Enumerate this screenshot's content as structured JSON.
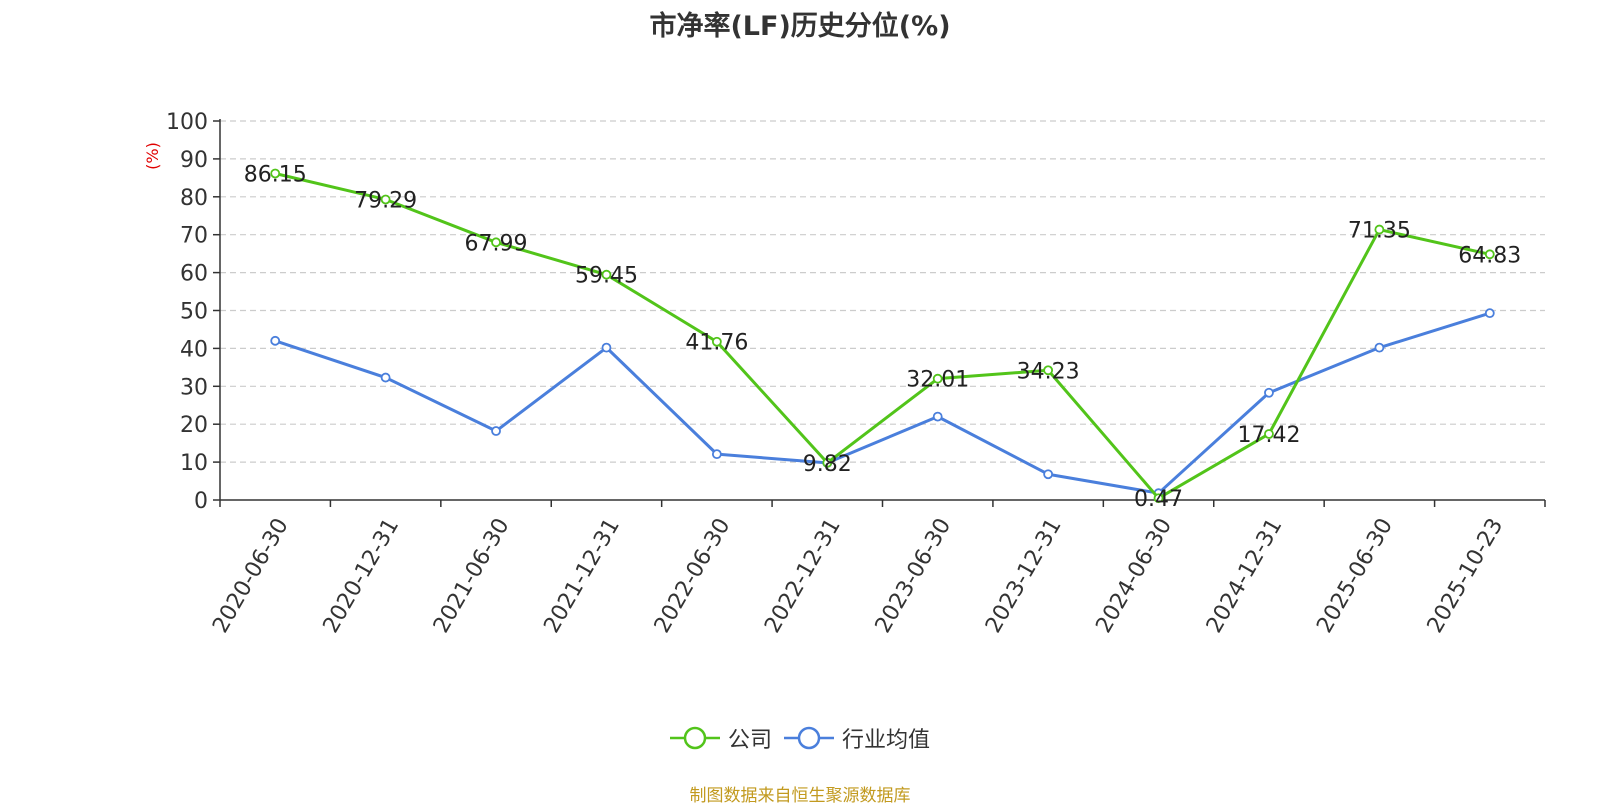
{
  "chart_data": {
    "type": "line",
    "title": "市净率(LF)历史分位(%)",
    "ylabel": "(%)",
    "xlabel": "",
    "ylim": [
      0,
      100
    ],
    "yticks": [
      0,
      10,
      20,
      30,
      40,
      50,
      60,
      70,
      80,
      90,
      100
    ],
    "grid": true,
    "legend_position": "bottom-center",
    "categories": [
      "2020-06-30",
      "2020-12-31",
      "2021-06-30",
      "2021-12-31",
      "2022-06-30",
      "2022-12-31",
      "2023-06-30",
      "2023-12-31",
      "2024-06-30",
      "2024-12-31",
      "2025-06-30",
      "2025-10-23"
    ],
    "series": [
      {
        "name": "公司",
        "color": "#52c41a",
        "show_labels": true,
        "values": [
          86.15,
          79.29,
          67.99,
          59.45,
          41.76,
          9.82,
          32.01,
          34.23,
          0.47,
          17.42,
          71.35,
          64.83
        ],
        "labels": [
          "86.15",
          "79.29",
          "67.99",
          "59.45",
          "41.76",
          "9.82",
          "32.01",
          "34.23",
          "0.47",
          "17.42",
          "71.35",
          "64.83"
        ]
      },
      {
        "name": "行业均值",
        "color": "#4a7fdc",
        "show_labels": false,
        "values": [
          42.0,
          32.3,
          18.2,
          40.2,
          12.1,
          9.8,
          22.0,
          6.8,
          1.8,
          28.3,
          40.2,
          49.3
        ]
      }
    ],
    "source_note": "制图数据来自恒生聚源数据库"
  }
}
